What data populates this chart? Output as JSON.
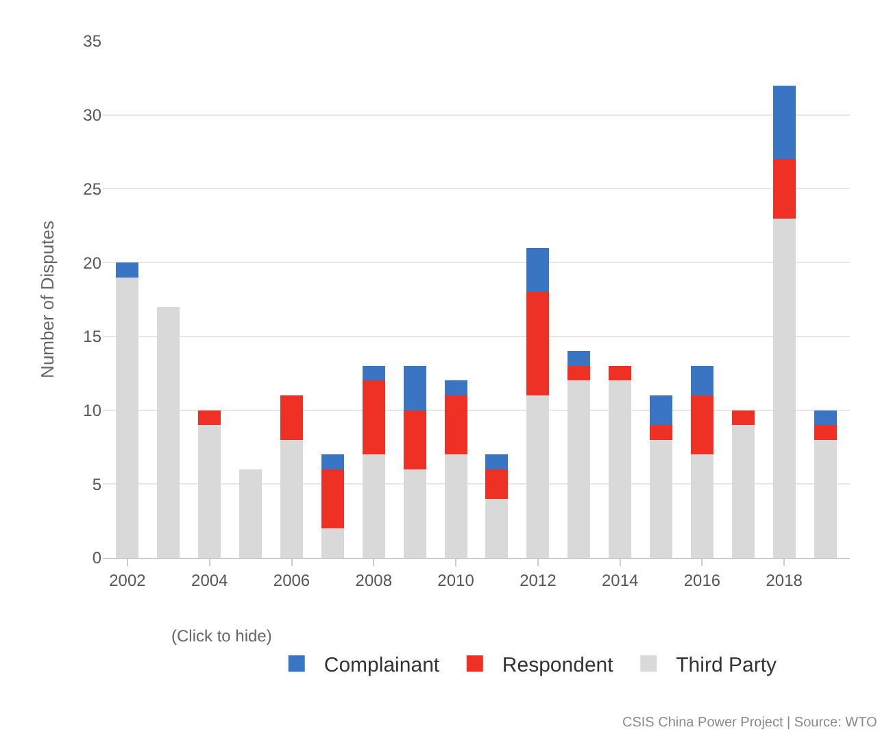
{
  "chart_data": {
    "type": "bar",
    "stacked": true,
    "ylabel": "Number of Disputes",
    "legend_title": "(Click to hide)",
    "x": [
      2002,
      2003,
      2004,
      2005,
      2006,
      2007,
      2008,
      2009,
      2010,
      2011,
      2012,
      2013,
      2014,
      2015,
      2016,
      2017,
      2018,
      2019
    ],
    "series": [
      {
        "name": "Third Party",
        "color": "#d9d9d9",
        "values": [
          19,
          17,
          9,
          6,
          8,
          2,
          7,
          6,
          7,
          4,
          11,
          12,
          12,
          8,
          7,
          9,
          23,
          8
        ]
      },
      {
        "name": "Respondent",
        "color": "#ee3124",
        "values": [
          0,
          0,
          1,
          0,
          3,
          4,
          5,
          4,
          4,
          2,
          7,
          1,
          1,
          1,
          4,
          1,
          4,
          1
        ]
      },
      {
        "name": "Complainant",
        "color": "#3a75c4",
        "values": [
          1,
          0,
          0,
          0,
          0,
          1,
          1,
          3,
          1,
          1,
          3,
          1,
          0,
          2,
          2,
          0,
          5,
          1
        ]
      }
    ],
    "xlim": [
      2001.4,
      2019.6
    ],
    "xticks": [
      2002,
      2004,
      2006,
      2008,
      2010,
      2012,
      2014,
      2016,
      2018
    ],
    "ylim": [
      0,
      35
    ],
    "yticks": [
      0,
      5,
      10,
      15,
      20,
      25,
      30,
      35
    ],
    "grid": "y",
    "legend": "bottom",
    "annotations": [
      "CSIS China Power Project | Source: WTO"
    ]
  }
}
